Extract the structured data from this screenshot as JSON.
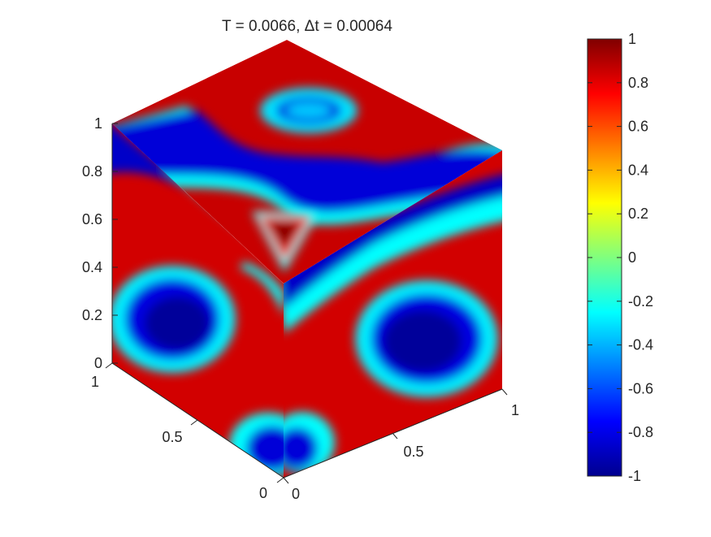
{
  "chart_data": {
    "type": "heatmap",
    "plot_kind": "3D surface on unit cube (three visible faces: top, left, right)",
    "title": "T = 0.0066,  Δt = 0.00064",
    "axes": {
      "z": {
        "range": [
          0,
          1
        ],
        "ticks": [
          "0",
          "0.2",
          "0.4",
          "0.6",
          "0.8",
          "1"
        ]
      },
      "y_left": {
        "range": [
          0,
          1
        ],
        "ticks": [
          "0",
          "0.5",
          "1"
        ]
      },
      "x_right": {
        "range": [
          0,
          1
        ],
        "ticks": [
          "0",
          "0.5",
          "1"
        ]
      }
    },
    "colormap": "jet",
    "colorbar": {
      "range": [
        -1,
        1
      ],
      "ticks": [
        "1",
        "0.8",
        "0.6",
        "0.4",
        "0.2",
        "0",
        "-0.2",
        "-0.4",
        "-0.6",
        "-0.8",
        "-1"
      ],
      "placement": "right"
    },
    "field_value_range": [
      -1,
      1
    ],
    "grid": false
  }
}
